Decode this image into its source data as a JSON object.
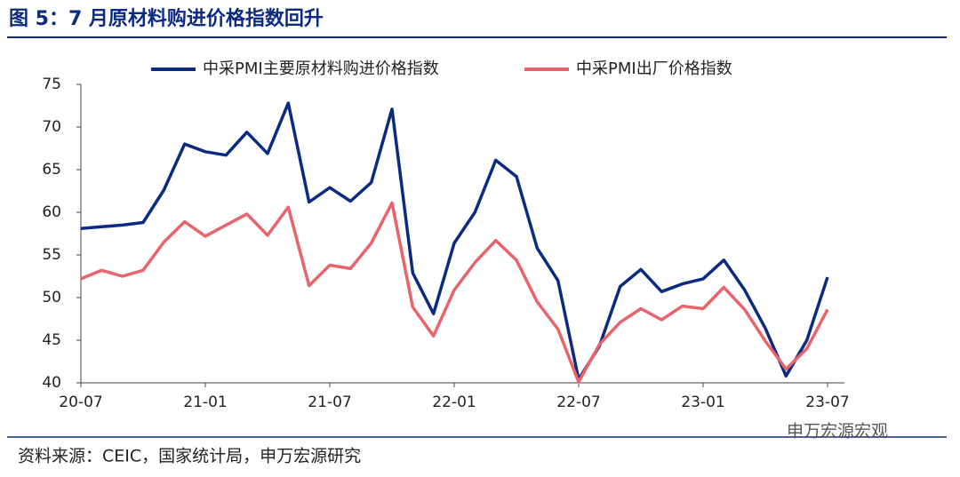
{
  "chart_data": {
    "type": "line",
    "title": "图 5：7 月原材料购进价格指数回升",
    "source": "资料来源：CEIC，国家统计局，申万宏源研究",
    "watermark": "申万宏源宏观",
    "categories": [
      "20-07",
      null,
      null,
      null,
      null,
      null,
      "21-01",
      null,
      null,
      null,
      null,
      null,
      "21-07",
      null,
      null,
      null,
      null,
      null,
      "22-01",
      null,
      null,
      null,
      null,
      null,
      "22-07",
      null,
      null,
      null,
      null,
      null,
      "23-01",
      null,
      null,
      null,
      null,
      null,
      "23-07"
    ],
    "series": [
      {
        "name": "中采PMI主要原材料购进价格指数",
        "color": "#0b2a82",
        "values": [
          58.1,
          58.3,
          58.5,
          58.8,
          62.6,
          68.0,
          67.1,
          66.7,
          69.4,
          66.9,
          72.8,
          61.2,
          62.9,
          61.3,
          63.5,
          72.1,
          52.9,
          48.1,
          56.4,
          60.0,
          66.1,
          64.2,
          55.8,
          52.0,
          40.4,
          44.3,
          51.3,
          53.3,
          50.7,
          51.6,
          52.2,
          54.4,
          50.9,
          46.4,
          40.8,
          45.0,
          52.4
        ]
      },
      {
        "name": "中采PMI出厂价格指数",
        "color": "#e8646a",
        "values": [
          52.2,
          53.2,
          52.5,
          53.2,
          56.5,
          58.9,
          57.2,
          58.5,
          59.8,
          57.3,
          60.6,
          51.4,
          53.8,
          53.4,
          56.4,
          61.1,
          48.9,
          45.5,
          50.9,
          54.1,
          56.7,
          54.4,
          49.5,
          46.3,
          40.1,
          44.5,
          47.1,
          48.7,
          47.4,
          49.0,
          48.7,
          51.2,
          48.6,
          44.9,
          41.6,
          44.0,
          48.6
        ]
      }
    ],
    "ylim": [
      40,
      75
    ],
    "yticks": [
      40,
      45,
      50,
      55,
      60,
      65,
      70,
      75
    ],
    "grid": false,
    "legend": "top"
  }
}
